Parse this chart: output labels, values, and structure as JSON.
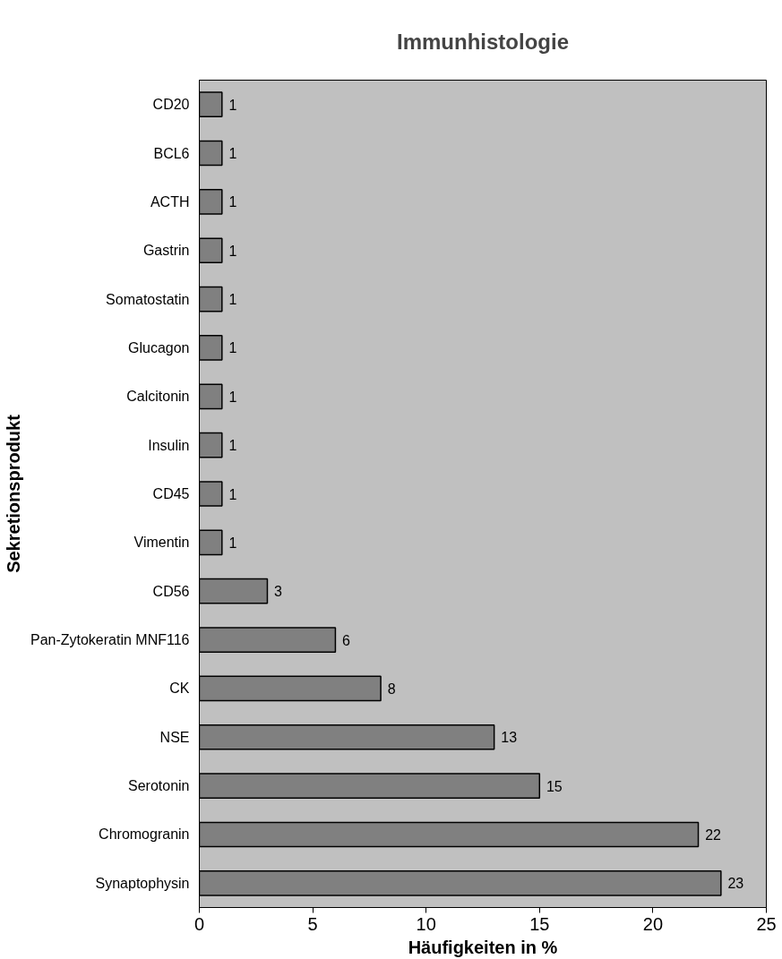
{
  "chart_data": {
    "type": "bar",
    "orientation": "horizontal",
    "title": "Immunhistologie",
    "xlabel": "Häufigkeiten in %",
    "ylabel": "Sekretionsprodukt",
    "categories": [
      "CD20",
      "BCL6",
      "ACTH",
      "Gastrin",
      "Somatostatin",
      "Glucagon",
      "Calcitonin",
      "Insulin",
      "CD45",
      "Vimentin",
      "CD56",
      "Pan-Zytokeratin MNF116",
      "CK",
      "NSE",
      "Serotonin",
      "Chromogranin",
      "Synaptophysin"
    ],
    "values": [
      1,
      1,
      1,
      1,
      1,
      1,
      1,
      1,
      1,
      1,
      3,
      6,
      8,
      13,
      15,
      22,
      23
    ],
    "color": "#808080",
    "xlim": [
      0,
      25
    ],
    "xticks": [
      0,
      5,
      10,
      15,
      20,
      25
    ],
    "grid": false,
    "data_labels": true
  }
}
